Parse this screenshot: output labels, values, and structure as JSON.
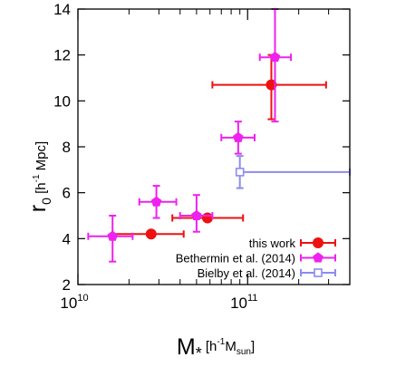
{
  "chart_data": {
    "type": "scatter",
    "xscale": "log",
    "xlim": [
      10000000000.0,
      400000000000.0
    ],
    "ylim": [
      2,
      14
    ],
    "x_ticks": [
      {
        "value": 10000000000.0,
        "mantissa": "10",
        "exp": "10"
      },
      {
        "value": 100000000000.0,
        "mantissa": "10",
        "exp": "11"
      }
    ],
    "y_ticks": [
      2,
      4,
      6,
      8,
      10,
      12,
      14
    ],
    "xlabel": {
      "main": "M",
      "sub": "*",
      "unit_open": " [h",
      "unit_exp": "-1",
      "unit_mid": "M",
      "unit_sub": "sun",
      "unit_close": "]"
    },
    "ylabel": {
      "main": "r",
      "sub": "0",
      "unit_open": " [h",
      "unit_exp": "-1",
      "unit_close": " Mpc]"
    },
    "legend_position": "bottom-right",
    "series": [
      {
        "name": "this work",
        "color": "#ee1111",
        "marker": "filled-circle",
        "points": [
          {
            "x": 27000000000.0,
            "y": 4.2,
            "xlo": 16000000000.0,
            "xhi": 42000000000.0,
            "ylo": 4.2,
            "yhi": 4.2
          },
          {
            "x": 58000000000.0,
            "y": 4.9,
            "xlo": 36000000000.0,
            "xhi": 94000000000.0,
            "ylo": 4.9,
            "yhi": 4.9
          },
          {
            "x": 138000000000.0,
            "y": 10.7,
            "xlo": 62000000000.0,
            "xhi": 290000000000.0,
            "ylo": 9.2,
            "yhi": 12.0
          }
        ]
      },
      {
        "name": "Bethermin et al. (2014)",
        "color": "#ee22ee",
        "marker": "filled-pentagon",
        "points": [
          {
            "x": 16000000000.0,
            "y": 4.1,
            "xlo": 11500000000.0,
            "xhi": 21000000000.0,
            "ylo": 3.0,
            "yhi": 5.0
          },
          {
            "x": 29000000000.0,
            "y": 5.6,
            "xlo": 23000000000.0,
            "xhi": 38000000000.0,
            "ylo": 4.9,
            "yhi": 6.3
          },
          {
            "x": 50000000000.0,
            "y": 5.0,
            "xlo": 40000000000.0,
            "xhi": 62000000000.0,
            "ylo": 4.3,
            "yhi": 5.9
          },
          {
            "x": 88000000000.0,
            "y": 8.4,
            "xlo": 70000000000.0,
            "xhi": 110000000000.0,
            "ylo": 7.7,
            "yhi": 9.1
          },
          {
            "x": 145000000000.0,
            "y": 11.9,
            "xlo": 118000000000.0,
            "xhi": 180000000000.0,
            "ylo": 9.1,
            "yhi": 14.0
          }
        ]
      },
      {
        "name": "Bielby et al. (2014)",
        "color": "#8c8cf0",
        "marker": "open-square",
        "points": [
          {
            "x": 90000000000.0,
            "y": 6.9,
            "xlo": 90000000000.0,
            "xhi": 400000000000.0,
            "ylo": 6.2,
            "yhi": 7.6
          }
        ]
      }
    ]
  }
}
